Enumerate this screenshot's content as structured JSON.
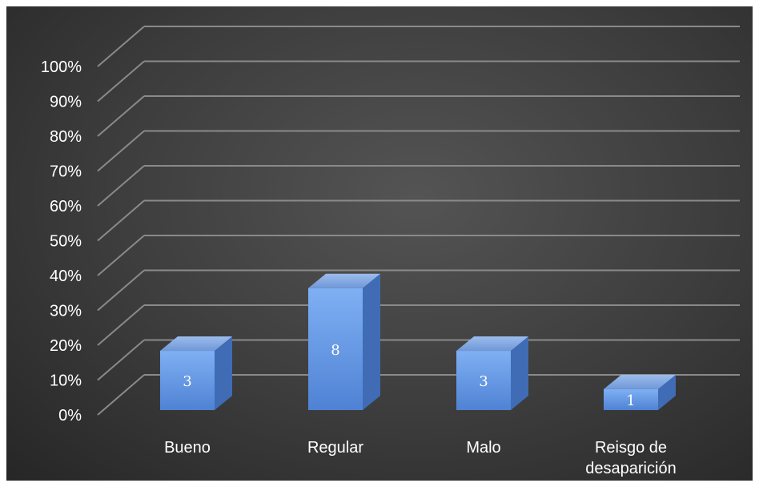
{
  "chart_data": {
    "type": "bar",
    "categories": [
      [
        "Bueno"
      ],
      [
        "Regular"
      ],
      [
        "Malo"
      ],
      [
        "Reisgo de",
        "desaparición"
      ]
    ],
    "values": [
      3,
      8,
      3,
      1
    ],
    "percent_values": [
      17,
      35,
      17,
      6
    ],
    "data_labels": [
      "3",
      "8",
      "3",
      "1"
    ],
    "y_ticks": [
      "0%",
      "10%",
      "20%",
      "30%",
      "40%",
      "50%",
      "60%",
      "70%",
      "80%",
      "90%",
      "100%"
    ],
    "ylim": [
      0,
      100
    ],
    "grid": true,
    "three_d": true,
    "colors": {
      "bar_front": "#5b8fe0",
      "bar_front_light": "#79a9f0",
      "bar_top": "#8db3ec",
      "bar_side": "#3f6cb5",
      "grid": "#8a8a8a",
      "text": "#ffffff"
    }
  }
}
